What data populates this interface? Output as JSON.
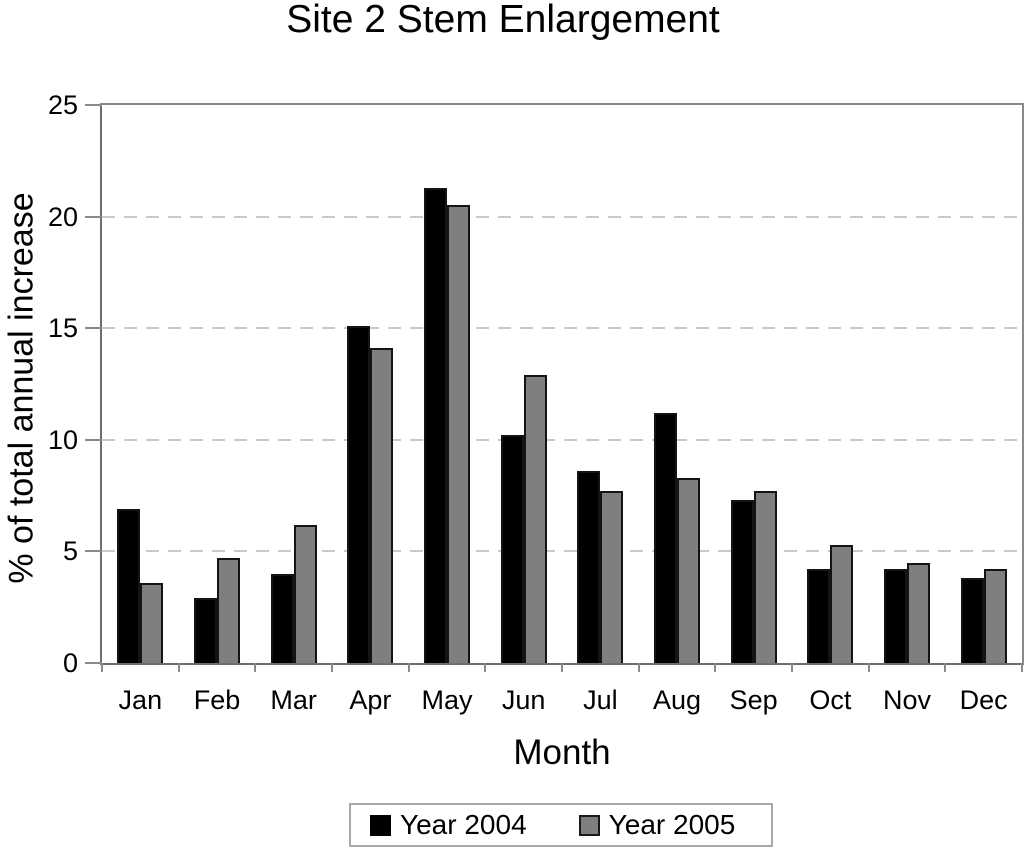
{
  "title": "Site 2 Stem Enlargement",
  "chart_data": {
    "type": "bar",
    "title": "Site 2 Stem Enlargement",
    "xlabel": "Month",
    "ylabel": "% of total annual increase",
    "categories": [
      "Jan",
      "Feb",
      "Mar",
      "Apr",
      "May",
      "Jun",
      "Jul",
      "Aug",
      "Sep",
      "Oct",
      "Nov",
      "Dec"
    ],
    "series": [
      {
        "name": "Year 2004",
        "color": "#000000",
        "values": [
          6.9,
          2.9,
          4.0,
          15.1,
          21.3,
          10.2,
          8.6,
          11.2,
          7.3,
          4.2,
          4.2,
          3.8
        ]
      },
      {
        "name": "Year 2005",
        "color": "#7f7f7f",
        "values": [
          3.6,
          4.7,
          6.2,
          14.1,
          20.5,
          12.9,
          7.7,
          8.3,
          7.7,
          5.3,
          4.5,
          4.2
        ]
      }
    ],
    "ylim": [
      0,
      25
    ],
    "yticks": [
      0,
      5,
      10,
      15,
      20,
      25
    ],
    "grid": "horizontal dashed gridlines at each y tick",
    "legend_position": "bottom center, boxed"
  },
  "colors": {
    "bar_2004": "#000000",
    "bar_2005": "#7f7f7f",
    "gridline": "#c9c9c9",
    "frame": "#8a8a8a",
    "background": "#ffffff",
    "text": "#000000"
  }
}
